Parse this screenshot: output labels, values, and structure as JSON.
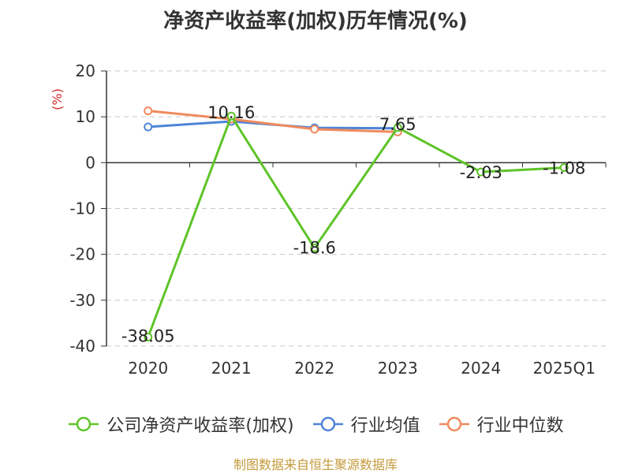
{
  "title": "净资产收益率(加权)历年情况(%)",
  "source_note": "制图数据来自恒生聚源数据库",
  "colors": {
    "company": "#5ec428",
    "industry_avg": "#4f84d6",
    "industry_median": "#f08a5d",
    "axis_unit": "#d92b2b"
  },
  "chart_data": {
    "type": "line",
    "title": "净资产收益率(加权)历年情况(%)",
    "ylabel": "(%)",
    "xlabel": "",
    "ylim": [
      -40,
      20
    ],
    "yticks": [
      20,
      10,
      0,
      -10,
      -20,
      -30,
      -40
    ],
    "categories": [
      "2020",
      "2021",
      "2022",
      "2023",
      "2024",
      "2025Q1"
    ],
    "grid": true,
    "legend_position": "bottom",
    "series": [
      {
        "name": "公司净资产收益率(加权)",
        "values": [
          -38.05,
          10.16,
          -18.6,
          7.65,
          -2.03,
          -1.08
        ],
        "labels": [
          "-38.05",
          "10.16",
          "-18.6",
          "7.65",
          "-2.03",
          "-1.08"
        ],
        "color": "#5ec428"
      },
      {
        "name": "行业均值",
        "values": [
          7.8,
          9.0,
          7.6,
          7.5,
          null,
          null
        ],
        "color": "#4f84d6"
      },
      {
        "name": "行业中位数",
        "values": [
          11.3,
          9.5,
          7.3,
          6.7,
          null,
          null
        ],
        "color": "#f08a5d"
      }
    ]
  }
}
